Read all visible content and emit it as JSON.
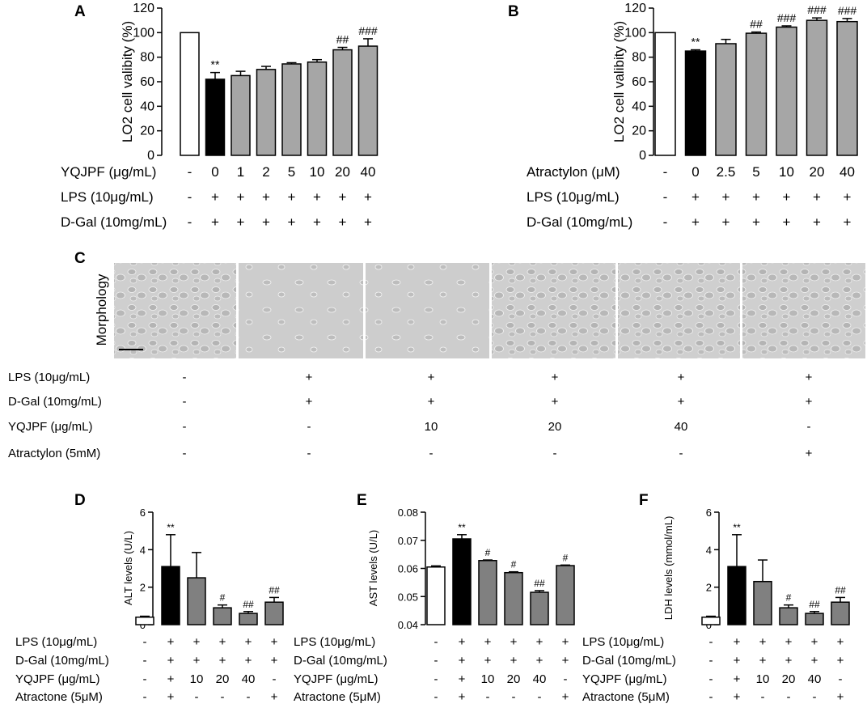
{
  "panels": {
    "A": {
      "label": "A"
    },
    "B": {
      "label": "B"
    },
    "C": {
      "label": "C",
      "morphology_label": "Morphology"
    },
    "D": {
      "label": "D"
    },
    "E": {
      "label": "E"
    },
    "F": {
      "label": "F"
    }
  },
  "chart_data": [
    {
      "id": "A",
      "type": "bar",
      "ylabel": "LO2 cell valibity (%)",
      "ylim": [
        0,
        120
      ],
      "yticks": [
        "0",
        "20",
        "40",
        "60",
        "80",
        "100",
        "120"
      ],
      "values": [
        100,
        62,
        65,
        70,
        74.5,
        76,
        86,
        89
      ],
      "errors": [
        0,
        5.5,
        3.5,
        2.5,
        1,
        2,
        2,
        6
      ],
      "bar_colors": [
        "#ffffff",
        "#000000",
        "#a6a6a6",
        "#a6a6a6",
        "#a6a6a6",
        "#a6a6a6",
        "#a6a6a6",
        "#a6a6a6"
      ],
      "significance": [
        "",
        "**",
        "",
        "",
        "",
        "",
        "##",
        "###"
      ],
      "treatment_rows": [
        {
          "label": "YQJPF (μg/mL)",
          "values": [
            "-",
            "0",
            "1",
            "2",
            "5",
            "10",
            "20",
            "40"
          ]
        },
        {
          "label": "LPS (10μg/mL)",
          "values": [
            "-",
            "+",
            "+",
            "+",
            "+",
            "+",
            "+",
            "+"
          ]
        },
        {
          "label": "D-Gal (10mg/mL)",
          "values": [
            "-",
            "+",
            "+",
            "+",
            "+",
            "+",
            "+",
            "+"
          ]
        }
      ]
    },
    {
      "id": "B",
      "type": "bar",
      "ylabel": "LO2 cell valibity (%)",
      "ylim": [
        0,
        120
      ],
      "yticks": [
        "0",
        "20",
        "40",
        "60",
        "80",
        "100",
        "120"
      ],
      "values": [
        100,
        85,
        91,
        99.5,
        104.5,
        110,
        109
      ],
      "errors": [
        0,
        1,
        3.5,
        1,
        1,
        2,
        2.5
      ],
      "bar_colors": [
        "#ffffff",
        "#000000",
        "#a6a6a6",
        "#a6a6a6",
        "#a6a6a6",
        "#a6a6a6",
        "#a6a6a6"
      ],
      "significance": [
        "",
        "**",
        "",
        "##",
        "###",
        "###",
        "###"
      ],
      "treatment_rows": [
        {
          "label": "Atractylon (μM)",
          "values": [
            "-",
            "0",
            "2.5",
            "5",
            "10",
            "20",
            "40"
          ]
        },
        {
          "label": "LPS (10μg/mL)",
          "values": [
            "-",
            "+",
            "+",
            "+",
            "+",
            "+",
            "+"
          ]
        },
        {
          "label": "D-Gal (10mg/mL)",
          "values": [
            "-",
            "+",
            "+",
            "+",
            "+",
            "+",
            "+"
          ]
        }
      ]
    },
    {
      "id": "D",
      "type": "bar",
      "ylabel": "ALT levels (U/L)",
      "ylim": [
        0,
        6
      ],
      "yticks": [
        "0",
        "2",
        "4",
        "6"
      ],
      "values": [
        0.4,
        3.1,
        2.5,
        0.9,
        0.6,
        1.2
      ],
      "errors": [
        0.05,
        1.7,
        1.35,
        0.15,
        0.1,
        0.25
      ],
      "bar_colors": [
        "#ffffff",
        "#000000",
        "#808080",
        "#808080",
        "#808080",
        "#808080"
      ],
      "significance": [
        "",
        "**",
        "",
        "#",
        "##",
        "##"
      ],
      "treatment_rows": [
        {
          "label": "LPS (10μg/mL)",
          "values": [
            "-",
            "+",
            "+",
            "+",
            "+",
            "+"
          ]
        },
        {
          "label": "D-Gal (10mg/mL)",
          "values": [
            "-",
            "+",
            "+",
            "+",
            "+",
            "+"
          ]
        },
        {
          "label": "YQJPF (μg/mL)",
          "values": [
            "-",
            "+",
            "10",
            "20",
            "40",
            "-"
          ]
        },
        {
          "label": "Atractone (5μM)",
          "values": [
            "-",
            "+",
            "-",
            "-",
            "-",
            "+"
          ]
        }
      ]
    },
    {
      "id": "E",
      "type": "bar",
      "ylabel": "AST levels (U/L)",
      "ylim": [
        0.04,
        0.08
      ],
      "yticks": [
        "0.04",
        "0.05",
        "0.06",
        "0.07",
        "0.08"
      ],
      "values": [
        0.0605,
        0.0705,
        0.0628,
        0.0585,
        0.0515,
        0.061
      ],
      "errors": [
        0.0004,
        0.0015,
        0.0002,
        0.0003,
        0.0006,
        0.0002
      ],
      "bar_colors": [
        "#ffffff",
        "#000000",
        "#808080",
        "#808080",
        "#808080",
        "#808080"
      ],
      "significance": [
        "",
        "**",
        "#",
        "#",
        "##",
        "#"
      ],
      "treatment_rows": [
        {
          "label": "LPS (10μg/mL)",
          "values": [
            "-",
            "+",
            "+",
            "+",
            "+",
            "+"
          ]
        },
        {
          "label": "D-Gal (10mg/mL)",
          "values": [
            "-",
            "+",
            "+",
            "+",
            "+",
            "+"
          ]
        },
        {
          "label": "YQJPF (μg/mL)",
          "values": [
            "-",
            "+",
            "10",
            "20",
            "40",
            "-"
          ]
        },
        {
          "label": "Atractone (5μM)",
          "values": [
            "-",
            "+",
            "-",
            "-",
            "-",
            "+"
          ]
        }
      ]
    },
    {
      "id": "F",
      "type": "bar",
      "ylabel": "LDH levels (mmol/mL)",
      "ylim": [
        0,
        6
      ],
      "yticks": [
        "0",
        "2",
        "4",
        "6"
      ],
      "values": [
        0.4,
        3.1,
        2.3,
        0.9,
        0.6,
        1.2
      ],
      "errors": [
        0.05,
        1.7,
        1.15,
        0.15,
        0.1,
        0.25
      ],
      "bar_colors": [
        "#ffffff",
        "#000000",
        "#808080",
        "#808080",
        "#808080",
        "#808080"
      ],
      "significance": [
        "",
        "**",
        "",
        "#",
        "##",
        "##"
      ],
      "treatment_rows": [
        {
          "label": "LPS (10μg/mL)",
          "values": [
            "-",
            "+",
            "+",
            "+",
            "+",
            "+"
          ]
        },
        {
          "label": "D-Gal (10mg/mL)",
          "values": [
            "-",
            "+",
            "+",
            "+",
            "+",
            "+"
          ]
        },
        {
          "label": "YQJPF (μg/mL)",
          "values": [
            "-",
            "+",
            "10",
            "20",
            "40",
            "-"
          ]
        },
        {
          "label": "Atractone (5μM)",
          "values": [
            "-",
            "+",
            "-",
            "-",
            "-",
            "+"
          ]
        }
      ]
    }
  ],
  "morphology": {
    "rows": [
      {
        "label": "LPS (10μg/mL)",
        "values": [
          "-",
          "+",
          "+",
          "+",
          "+",
          "+"
        ]
      },
      {
        "label": "D-Gal (10mg/mL)",
        "values": [
          "-",
          "+",
          "+",
          "+",
          "+",
          "+"
        ]
      },
      {
        "label": "YQJPF (μg/mL)",
        "values": [
          "-",
          "-",
          "10",
          "20",
          "40",
          "-"
        ]
      },
      {
        "label": "Atractylon (5mM)",
        "values": [
          "-",
          "-",
          "-",
          "-",
          "-",
          "+"
        ]
      }
    ]
  }
}
